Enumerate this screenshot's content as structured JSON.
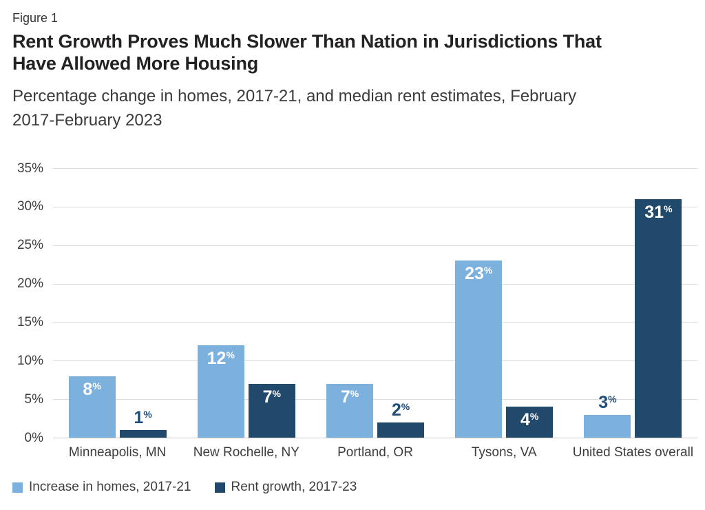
{
  "header": {
    "figure_label": "Figure 1",
    "title_lines": [
      "Rent Growth Proves Much Slower Than Nation in Jurisdictions That",
      "Have Allowed More Housing"
    ],
    "subtitle_lines": [
      "Percentage change in homes, 2017-21, and median rent estimates, February",
      "2017-February 2023"
    ]
  },
  "chart_data": {
    "type": "bar",
    "title": "Rent Growth Proves Much Slower Than Nation in Jurisdictions That Have Allowed More Housing",
    "subtitle": "Percentage change in homes, 2017-21, and median rent estimates, February 2017-February 2023",
    "figure_label": "Figure 1",
    "categories": [
      "Minneapolis, MN",
      "New Rochelle, NY",
      "Portland, OR",
      "Tysons, VA",
      "United States overall"
    ],
    "series": [
      {
        "name": "Increase in homes, 2017-21",
        "color": "#7cb0dd",
        "values": [
          8,
          12,
          7,
          23,
          3
        ]
      },
      {
        "name": "Rent growth, 2017-23",
        "color": "#21496b",
        "values": [
          1,
          7,
          2,
          4,
          31
        ]
      }
    ],
    "value_suffix": "%",
    "xlabel": "",
    "ylabel": "",
    "ylim": [
      0,
      35
    ],
    "ytick_step": 5,
    "ytick_labels": [
      "0%",
      "5%",
      "10%",
      "15%",
      "20%",
      "25%",
      "30%",
      "35%"
    ],
    "grid": true,
    "legend_position": "bottom-left",
    "colors": {
      "grid": "#d9d9d9",
      "axis_text": "#3d3d3d",
      "label_inside": "#ffffff",
      "label_outside": "#1f4d78"
    }
  }
}
